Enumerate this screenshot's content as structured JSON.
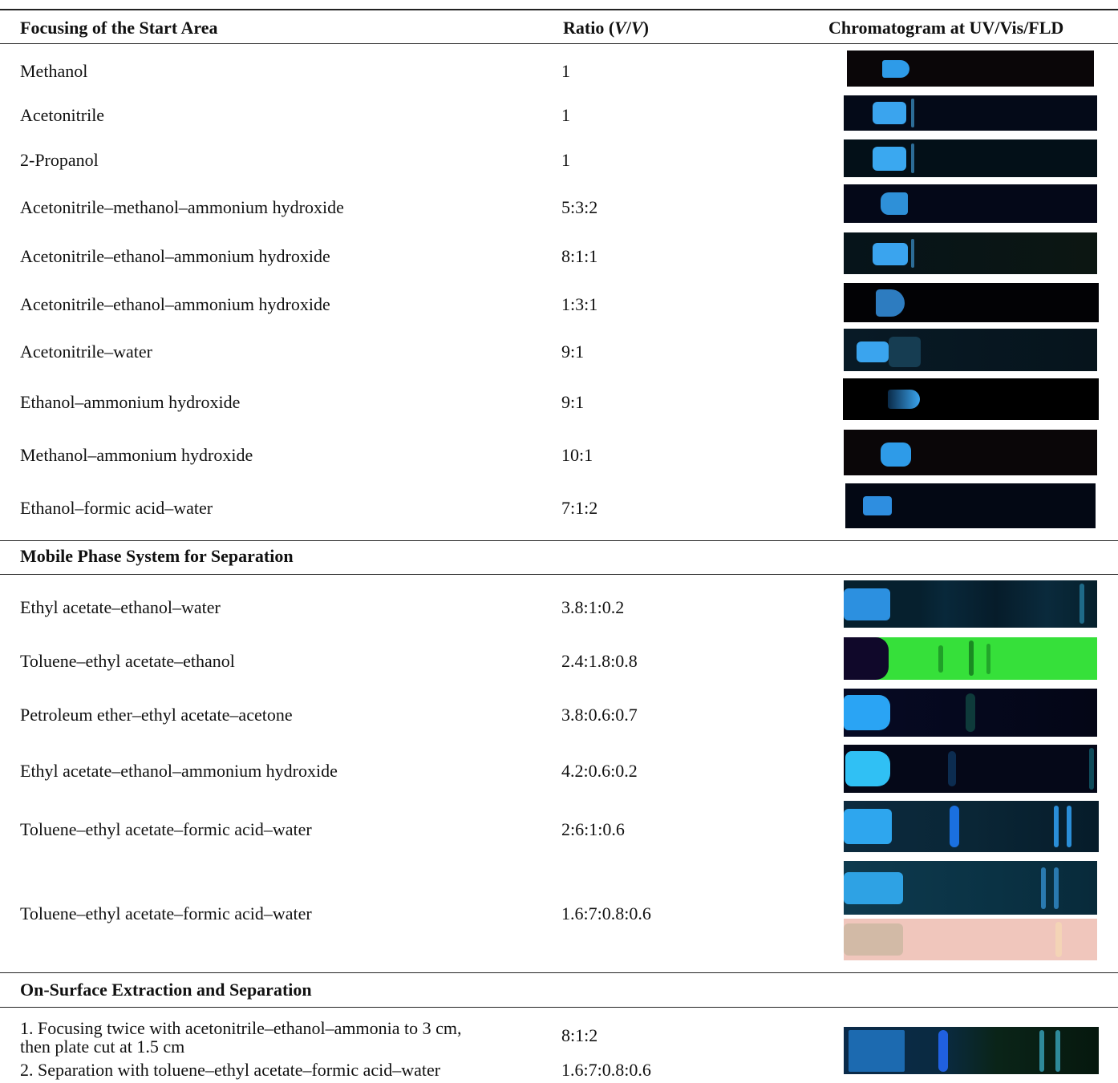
{
  "header": {
    "col1": "Focusing of the Start Area",
    "col2": [
      "Ratio (",
      "V",
      "/",
      "V",
      ")"
    ],
    "col3": "Chromatogram at UV/Vis/FLD"
  },
  "sections": [
    {
      "rows": [
        {
          "name": "Methanol",
          "ratio": "1"
        },
        {
          "name": "Acetonitrile",
          "ratio": "1"
        },
        {
          "name": "2-Propanol",
          "ratio": "1"
        },
        {
          "name": "Acetonitrile–methanol–ammonium hydroxide",
          "ratio": "5:3:2"
        },
        {
          "name": "Acetonitrile–ethanol–ammonium hydroxide",
          "ratio": "8:1:1"
        },
        {
          "name": "Acetonitrile–ethanol–ammonium hydroxide",
          "ratio": "1:3:1"
        },
        {
          "name": "Acetonitrile–water",
          "ratio": "9:1"
        },
        {
          "name": "Ethanol–ammonium hydroxide",
          "ratio": "9:1"
        },
        {
          "name": "Methanol–ammonium hydroxide",
          "ratio": "10:1"
        },
        {
          "name": "Ethanol–formic acid–water",
          "ratio": "7:1:2"
        }
      ]
    },
    {
      "title": "Mobile Phase System for Separation",
      "rows": [
        {
          "name": "Ethyl acetate–ethanol–water",
          "ratio": "3.8:1:0.2"
        },
        {
          "name": "Toluene–ethyl acetate–ethanol",
          "ratio": "2.4:1.8:0.8"
        },
        {
          "name": "Petroleum ether–ethyl acetate–acetone",
          "ratio": "3.8:0.6:0.7"
        },
        {
          "name": "Ethyl acetate–ethanol–ammonium hydroxide",
          "ratio": "4.2:0.6:0.2"
        },
        {
          "name": "Toluene–ethyl acetate–formic acid–water",
          "ratio": "2:6:1:0.6"
        },
        {
          "name": "Toluene–ethyl acetate–formic acid–water",
          "ratio": "1.6:7:0.8:0.6"
        }
      ]
    },
    {
      "title": "On-Surface Extraction and Separation",
      "rows": [
        {
          "name": [
            "1. Focusing twice with acetonitrile–ethanol–ammonia to 3 cm,",
            "then plate cut at 1.5 cm"
          ],
          "ratio": "8:1:2"
        },
        {
          "name": "2. Separation with toluene–ethyl acetate–formic acid–water",
          "ratio": "1.6:7:0.8:0.6"
        }
      ]
    }
  ]
}
